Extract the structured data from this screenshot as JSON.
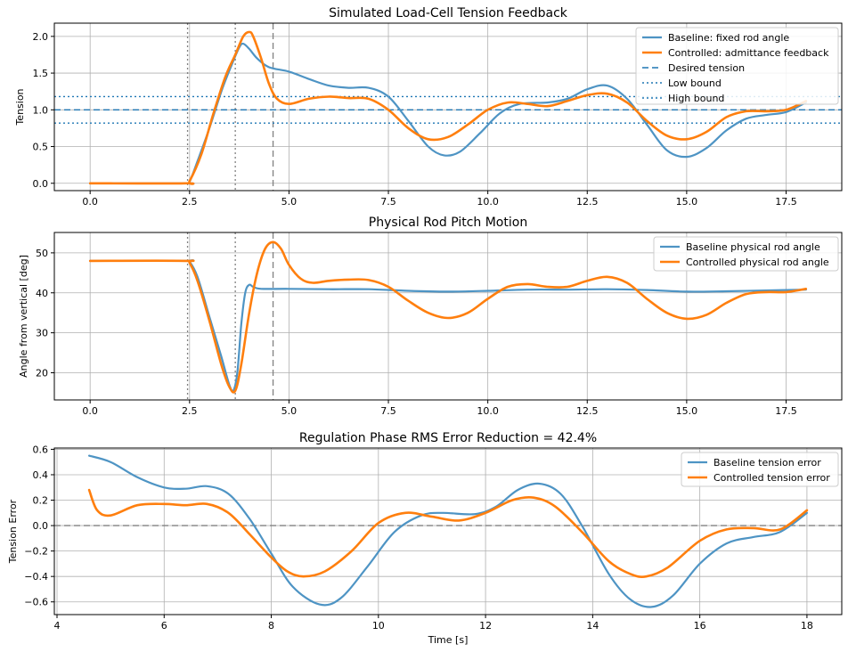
{
  "colors": {
    "baseline": "#4e94c4",
    "controlled": "#ff7f0e",
    "reference": "#1f77b4",
    "grid": "#b0b0b0",
    "vline": "#808080"
  },
  "chart_data": [
    {
      "type": "line",
      "title": "Simulated Load-Cell Tension Feedback",
      "xlabel": "",
      "ylabel": "Tension",
      "xlim": [
        -0.9,
        18.9
      ],
      "ylim": [
        -0.1,
        2.18
      ],
      "xticks": [
        0.0,
        2.5,
        5.0,
        7.5,
        10.0,
        12.5,
        15.0,
        17.5
      ],
      "xtick_labels": [
        "0.0",
        "2.5",
        "5.0",
        "7.5",
        "10.0",
        "12.5",
        "15.0",
        "17.5"
      ],
      "yticks": [
        0.0,
        0.5,
        1.0,
        1.5,
        2.0
      ],
      "ytick_labels": [
        "0.0",
        "0.5",
        "1.0",
        "1.5",
        "2.0"
      ],
      "grid": true,
      "legend": "top-right",
      "series": [
        {
          "name": "Baseline: fixed rod angle",
          "color": "#4e94c4",
          "style": "solid",
          "points": [
            [
              0,
              0
            ],
            [
              2.4,
              0
            ],
            [
              2.5,
              0.02
            ],
            [
              2.7,
              0.3
            ],
            [
              3.0,
              0.75
            ],
            [
              3.3,
              1.25
            ],
            [
              3.55,
              1.6
            ],
            [
              3.75,
              1.85
            ],
            [
              3.85,
              1.9
            ],
            [
              4.0,
              1.83
            ],
            [
              4.2,
              1.7
            ],
            [
              4.5,
              1.58
            ],
            [
              5.0,
              1.52
            ],
            [
              5.5,
              1.42
            ],
            [
              6.0,
              1.33
            ],
            [
              6.5,
              1.3
            ],
            [
              7.0,
              1.3
            ],
            [
              7.5,
              1.18
            ],
            [
              8.0,
              0.85
            ],
            [
              8.5,
              0.5
            ],
            [
              8.9,
              0.38
            ],
            [
              9.3,
              0.43
            ],
            [
              9.8,
              0.68
            ],
            [
              10.3,
              0.95
            ],
            [
              10.8,
              1.08
            ],
            [
              11.5,
              1.1
            ],
            [
              12.0,
              1.15
            ],
            [
              12.5,
              1.28
            ],
            [
              13.0,
              1.33
            ],
            [
              13.5,
              1.15
            ],
            [
              14.0,
              0.8
            ],
            [
              14.5,
              0.45
            ],
            [
              15.0,
              0.36
            ],
            [
              15.5,
              0.48
            ],
            [
              16.0,
              0.72
            ],
            [
              16.5,
              0.88
            ],
            [
              17.0,
              0.93
            ],
            [
              17.5,
              0.97
            ],
            [
              18.0,
              1.1
            ]
          ]
        },
        {
          "name": "Controlled: admittance feedback",
          "color": "#ff7f0e",
          "style": "solid",
          "points": [
            [
              0,
              0
            ],
            [
              2.4,
              0
            ],
            [
              2.5,
              0.03
            ],
            [
              2.8,
              0.4
            ],
            [
              3.1,
              0.95
            ],
            [
              3.4,
              1.45
            ],
            [
              3.65,
              1.75
            ],
            [
              3.85,
              2.0
            ],
            [
              4.0,
              2.06
            ],
            [
              4.1,
              2.0
            ],
            [
              4.3,
              1.7
            ],
            [
              4.5,
              1.35
            ],
            [
              4.7,
              1.15
            ],
            [
              5.0,
              1.08
            ],
            [
              5.5,
              1.15
            ],
            [
              6.0,
              1.18
            ],
            [
              6.5,
              1.16
            ],
            [
              7.0,
              1.15
            ],
            [
              7.5,
              1.0
            ],
            [
              8.0,
              0.75
            ],
            [
              8.5,
              0.6
            ],
            [
              9.0,
              0.63
            ],
            [
              9.5,
              0.8
            ],
            [
              10.0,
              1.0
            ],
            [
              10.5,
              1.1
            ],
            [
              11.0,
              1.08
            ],
            [
              11.5,
              1.05
            ],
            [
              12.0,
              1.12
            ],
            [
              12.5,
              1.2
            ],
            [
              13.0,
              1.22
            ],
            [
              13.5,
              1.1
            ],
            [
              14.0,
              0.85
            ],
            [
              14.5,
              0.65
            ],
            [
              15.0,
              0.6
            ],
            [
              15.5,
              0.7
            ],
            [
              16.0,
              0.9
            ],
            [
              16.5,
              0.98
            ],
            [
              17.0,
              0.98
            ],
            [
              17.5,
              1.0
            ],
            [
              18.0,
              1.12
            ]
          ]
        }
      ],
      "hlines": [
        {
          "name": "Desired tension",
          "y": 1.0,
          "color": "#1f77b4",
          "style": "dashed"
        },
        {
          "name": "Low bound",
          "y": 0.82,
          "color": "#1f77b4",
          "style": "dotted"
        },
        {
          "name": "High bound",
          "y": 1.18,
          "color": "#1f77b4",
          "style": "dotted"
        }
      ],
      "vlines": [
        {
          "x": 2.45,
          "style": "dotted"
        },
        {
          "x": 3.65,
          "style": "dotted"
        },
        {
          "x": 4.6,
          "style": "dashed"
        }
      ]
    },
    {
      "type": "line",
      "title": "Physical Rod Pitch Motion",
      "xlabel": "",
      "ylabel": "Angle from vertical [deg]",
      "xlim": [
        -0.9,
        18.9
      ],
      "ylim": [
        13.2,
        55.1
      ],
      "xticks": [
        0.0,
        2.5,
        5.0,
        7.5,
        10.0,
        12.5,
        15.0,
        17.5
      ],
      "xtick_labels": [
        "0.0",
        "2.5",
        "5.0",
        "7.5",
        "10.0",
        "12.5",
        "15.0",
        "17.5"
      ],
      "yticks": [
        20,
        30,
        40,
        50
      ],
      "ytick_labels": [
        "20",
        "30",
        "40",
        "50"
      ],
      "grid": true,
      "legend": "top-right",
      "series": [
        {
          "name": "Baseline physical rod angle",
          "color": "#4e94c4",
          "style": "solid",
          "points": [
            [
              0,
              48
            ],
            [
              2.4,
              48
            ],
            [
              2.5,
              47.8
            ],
            [
              2.7,
              44
            ],
            [
              3.0,
              34
            ],
            [
              3.3,
              24
            ],
            [
              3.5,
              17
            ],
            [
              3.6,
              15.5
            ],
            [
              3.7,
              20
            ],
            [
              3.8,
              32
            ],
            [
              3.9,
              40
            ],
            [
              4.0,
              42
            ],
            [
              4.1,
              41.5
            ],
            [
              4.3,
              41
            ],
            [
              5.0,
              41
            ],
            [
              6.0,
              40.9
            ],
            [
              7.0,
              40.9
            ],
            [
              8.0,
              40.5
            ],
            [
              9.0,
              40.3
            ],
            [
              10.0,
              40.5
            ],
            [
              11.0,
              40.8
            ],
            [
              12.0,
              40.8
            ],
            [
              13.0,
              40.9
            ],
            [
              14.0,
              40.7
            ],
            [
              15.0,
              40.3
            ],
            [
              16.0,
              40.4
            ],
            [
              17.0,
              40.6
            ],
            [
              18.0,
              40.8
            ]
          ]
        },
        {
          "name": "Controlled physical rod angle",
          "color": "#ff7f0e",
          "style": "solid",
          "points": [
            [
              0,
              48
            ],
            [
              2.4,
              48
            ],
            [
              2.5,
              47.5
            ],
            [
              2.7,
              43
            ],
            [
              3.0,
              33
            ],
            [
              3.3,
              22
            ],
            [
              3.5,
              16.5
            ],
            [
              3.65,
              15.5
            ],
            [
              3.8,
              22
            ],
            [
              4.0,
              35
            ],
            [
              4.2,
              45
            ],
            [
              4.4,
              51
            ],
            [
              4.6,
              52.7
            ],
            [
              4.8,
              51
            ],
            [
              5.0,
              47
            ],
            [
              5.3,
              43.5
            ],
            [
              5.6,
              42.5
            ],
            [
              6.0,
              43
            ],
            [
              6.5,
              43.3
            ],
            [
              7.0,
              43.2
            ],
            [
              7.5,
              41.5
            ],
            [
              8.0,
              38
            ],
            [
              8.5,
              35
            ],
            [
              9.0,
              33.7
            ],
            [
              9.5,
              35
            ],
            [
              10.0,
              38.5
            ],
            [
              10.5,
              41.5
            ],
            [
              11.0,
              42.2
            ],
            [
              11.5,
              41.5
            ],
            [
              12.0,
              41.5
            ],
            [
              12.5,
              43
            ],
            [
              13.0,
              44
            ],
            [
              13.5,
              42.5
            ],
            [
              14.0,
              38.5
            ],
            [
              14.5,
              35
            ],
            [
              15.0,
              33.5
            ],
            [
              15.5,
              34.5
            ],
            [
              16.0,
              37.5
            ],
            [
              16.5,
              39.7
            ],
            [
              17.0,
              40.2
            ],
            [
              17.5,
              40.2
            ],
            [
              18.0,
              41
            ]
          ]
        }
      ],
      "hlines": [],
      "vlines": [
        {
          "x": 2.45,
          "style": "dotted"
        },
        {
          "x": 3.65,
          "style": "dotted"
        },
        {
          "x": 4.6,
          "style": "dashed"
        }
      ]
    },
    {
      "type": "line",
      "title": "Regulation Phase RMS Error Reduction = 42.4%",
      "xlabel": "Time [s]",
      "ylabel": "Tension Error",
      "xlim": [
        3.95,
        18.65
      ],
      "ylim": [
        -0.7,
        0.61
      ],
      "xticks": [
        4,
        6,
        8,
        10,
        12,
        14,
        16,
        18
      ],
      "xtick_labels": [
        "4",
        "6",
        "8",
        "10",
        "12",
        "14",
        "16",
        "18"
      ],
      "yticks": [
        -0.6,
        -0.4,
        -0.2,
        0.0,
        0.2,
        0.4,
        0.6
      ],
      "ytick_labels": [
        "−0.6",
        "−0.4",
        "−0.2",
        "0.0",
        "0.2",
        "0.4",
        "0.6"
      ],
      "grid": true,
      "legend": "top-right",
      "series": [
        {
          "name": "Baseline tension error",
          "color": "#4e94c4",
          "style": "solid",
          "points": [
            [
              4.6,
              0.55
            ],
            [
              5.0,
              0.5
            ],
            [
              5.5,
              0.38
            ],
            [
              6.0,
              0.3
            ],
            [
              6.4,
              0.29
            ],
            [
              6.8,
              0.31
            ],
            [
              7.2,
              0.25
            ],
            [
              7.6,
              0.05
            ],
            [
              8.0,
              -0.22
            ],
            [
              8.4,
              -0.48
            ],
            [
              8.9,
              -0.62
            ],
            [
              9.3,
              -0.57
            ],
            [
              9.8,
              -0.32
            ],
            [
              10.3,
              -0.05
            ],
            [
              10.8,
              0.08
            ],
            [
              11.2,
              0.1
            ],
            [
              11.8,
              0.09
            ],
            [
              12.2,
              0.15
            ],
            [
              12.6,
              0.28
            ],
            [
              13.0,
              0.33
            ],
            [
              13.4,
              0.25
            ],
            [
              13.8,
              0.0
            ],
            [
              14.3,
              -0.38
            ],
            [
              14.7,
              -0.58
            ],
            [
              15.1,
              -0.64
            ],
            [
              15.5,
              -0.55
            ],
            [
              16.0,
              -0.3
            ],
            [
              16.5,
              -0.14
            ],
            [
              17.0,
              -0.09
            ],
            [
              17.5,
              -0.05
            ],
            [
              18.0,
              0.1
            ]
          ]
        },
        {
          "name": "Controlled tension error",
          "color": "#ff7f0e",
          "style": "solid",
          "points": [
            [
              4.6,
              0.28
            ],
            [
              4.75,
              0.12
            ],
            [
              5.0,
              0.08
            ],
            [
              5.5,
              0.16
            ],
            [
              6.0,
              0.17
            ],
            [
              6.4,
              0.16
            ],
            [
              6.8,
              0.17
            ],
            [
              7.2,
              0.1
            ],
            [
              7.6,
              -0.07
            ],
            [
              8.0,
              -0.25
            ],
            [
              8.3,
              -0.36
            ],
            [
              8.6,
              -0.4
            ],
            [
              9.0,
              -0.36
            ],
            [
              9.5,
              -0.2
            ],
            [
              10.0,
              0.02
            ],
            [
              10.5,
              0.1
            ],
            [
              11.0,
              0.07
            ],
            [
              11.5,
              0.04
            ],
            [
              12.0,
              0.1
            ],
            [
              12.5,
              0.2
            ],
            [
              12.9,
              0.22
            ],
            [
              13.3,
              0.15
            ],
            [
              13.8,
              -0.05
            ],
            [
              14.3,
              -0.28
            ],
            [
              14.7,
              -0.38
            ],
            [
              15.0,
              -0.4
            ],
            [
              15.4,
              -0.33
            ],
            [
              16.0,
              -0.12
            ],
            [
              16.5,
              -0.03
            ],
            [
              17.0,
              -0.02
            ],
            [
              17.5,
              -0.03
            ],
            [
              18.0,
              0.12
            ]
          ]
        }
      ],
      "hlines": [
        {
          "name": "",
          "y": 0.0,
          "color": "#808080",
          "style": "dashed"
        }
      ],
      "vlines": []
    }
  ]
}
